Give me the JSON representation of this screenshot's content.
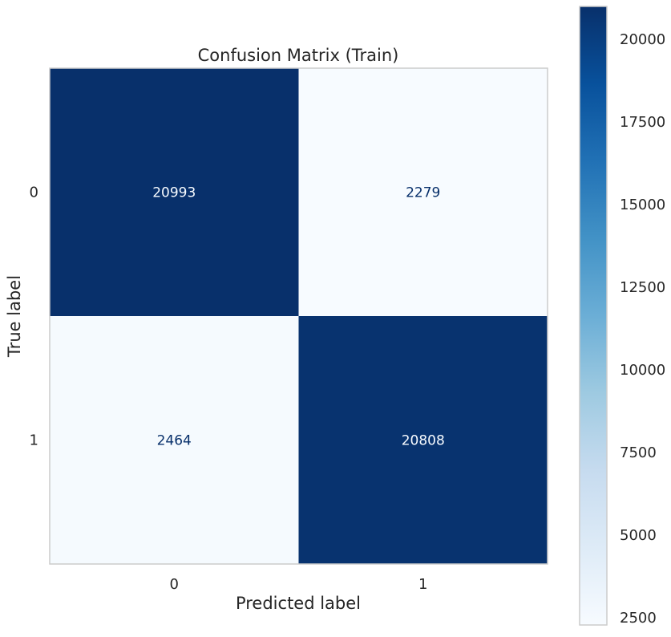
{
  "chart_data": {
    "type": "heatmap",
    "title": "Confusion Matrix (Train)",
    "xlabel": "Predicted label",
    "ylabel": "True label",
    "x_categories": [
      "0",
      "1"
    ],
    "y_categories": [
      "0",
      "1"
    ],
    "values": [
      [
        20993,
        2279
      ],
      [
        2464,
        20808
      ]
    ],
    "colormap": "Blues",
    "color_low": "#f7fbff",
    "color_high": "#08306b",
    "colorbar": {
      "range": [
        2279,
        20993
      ],
      "ticks": [
        2500,
        5000,
        7500,
        10000,
        12500,
        15000,
        17500,
        20000
      ]
    },
    "grid": false,
    "text_color_dark": "#08306b",
    "text_color_light": "#f7fbff"
  }
}
